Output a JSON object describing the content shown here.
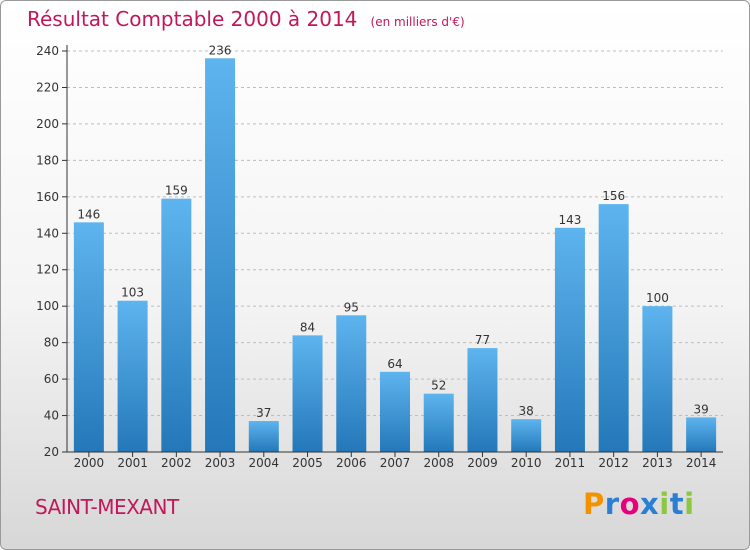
{
  "header": {
    "title": "Résultat Comptable 2000 à 2014",
    "subtitle": "(en milliers d'€)"
  },
  "footer": {
    "commune": "SAINT-MEXANT",
    "logo_letters": [
      "P",
      "r",
      "o",
      "x",
      "i",
      "t",
      "i"
    ],
    "logo_colors": [
      "#f39200",
      "#2a7fd4",
      "#e6007e",
      "#2a7fd4",
      "#8dc63f",
      "#2a7fd4",
      "#8dc63f"
    ]
  },
  "colors": {
    "bar_light": "#5eb4ee",
    "bar_dark": "#2478b9",
    "axis": "#333333",
    "grid": "#bdbdbd",
    "title": "#c2185b"
  },
  "chart_data": {
    "type": "bar",
    "title": "Résultat Comptable 2000 à 2014",
    "subtitle": "(en milliers d'€)",
    "xlabel": "",
    "ylabel": "",
    "categories": [
      "2000",
      "2001",
      "2002",
      "2003",
      "2004",
      "2005",
      "2006",
      "2007",
      "2008",
      "2009",
      "2010",
      "2011",
      "2012",
      "2013",
      "2014"
    ],
    "values": [
      146,
      103,
      159,
      236,
      37,
      84,
      95,
      64,
      52,
      77,
      38,
      143,
      156,
      100,
      39
    ],
    "ylim": [
      20,
      240
    ],
    "yticks": [
      20,
      40,
      60,
      80,
      100,
      120,
      140,
      160,
      180,
      200,
      220,
      240
    ],
    "grid": true,
    "legend": "none"
  }
}
